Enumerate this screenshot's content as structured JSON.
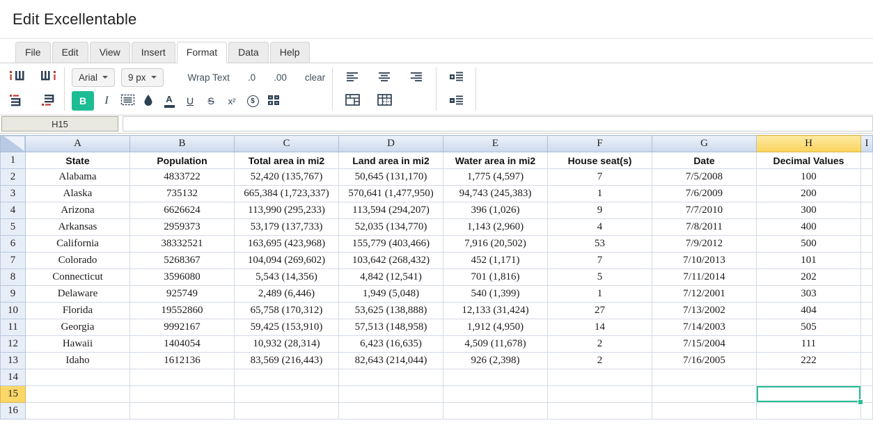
{
  "header": {
    "title": "Edit Excellentable"
  },
  "menu": {
    "items": [
      {
        "label": "File",
        "active": false
      },
      {
        "label": "Edit",
        "active": false
      },
      {
        "label": "View",
        "active": false
      },
      {
        "label": "Insert",
        "active": false
      },
      {
        "label": "Format",
        "active": true
      },
      {
        "label": "Data",
        "active": false
      },
      {
        "label": "Help",
        "active": false
      }
    ]
  },
  "toolbar": {
    "font_family": "Arial",
    "font_size": "9 px",
    "wrap_text_label": "Wrap Text",
    "decimal_decrease_label": ".0",
    "decimal_increase_label": ".00",
    "clear_label": "clear",
    "bold_label": "B",
    "italic_label": "I",
    "underline_label": "U",
    "strikethrough_label": "S",
    "superscript_label": "x²",
    "currency_label": "$",
    "text_color_label": "A",
    "icons": {
      "chevron-down": "▾",
      "insert-column-left": "svg-bars-vertical+red-accent",
      "insert-column-right": "svg-bars-vertical+red-accent",
      "insert-row-above": "svg-bars-horizontal+red-accent",
      "insert-row-below": "svg-bars-horizontal+red-accent",
      "borders": "dashed-box-with-lines",
      "fill-color": "droplet",
      "calculator": "four-blocks",
      "align-left": "lines-left",
      "align-center": "lines-center",
      "align-right": "lines-right",
      "merge-cells": "table-merged",
      "split-cells": "table-dotted",
      "indent-top": "plus-block-lines",
      "indent-bottom": "plus-block-lines"
    }
  },
  "formula_bar": {
    "cell_ref": "H15",
    "value": ""
  },
  "grid": {
    "column_headers": [
      "A",
      "B",
      "C",
      "D",
      "E",
      "F",
      "G",
      "H",
      "I"
    ],
    "selected_column": "H",
    "selected_row_number": 15,
    "selected_cell_ref": "H15",
    "rows": [
      {
        "num": 1,
        "bold": true,
        "cells": [
          "State",
          "Population",
          "Total area in mi2",
          "Land area in mi2",
          "Water area in mi2",
          "House seat(s)",
          "Date",
          "Decimal Values"
        ]
      },
      {
        "num": 2,
        "cells": [
          "Alabama",
          "4833722",
          "52,420 (135,767)",
          "50,645 (131,170)",
          "1,775 (4,597)",
          "7",
          "7/5/2008",
          "100"
        ]
      },
      {
        "num": 3,
        "cells": [
          "Alaska",
          "735132",
          "665,384 (1,723,337)",
          "570,641 (1,477,950)",
          "94,743 (245,383)",
          "1",
          "7/6/2009",
          "200"
        ]
      },
      {
        "num": 4,
        "cells": [
          "Arizona",
          "6626624",
          "113,990 (295,233)",
          "113,594 (294,207)",
          "396 (1,026)",
          "9",
          "7/7/2010",
          "300"
        ]
      },
      {
        "num": 5,
        "cells": [
          "Arkansas",
          "2959373",
          "53,179 (137,733)",
          "52,035 (134,770)",
          "1,143 (2,960)",
          "4",
          "7/8/2011",
          "400"
        ]
      },
      {
        "num": 6,
        "cells": [
          "California",
          "38332521",
          "163,695 (423,968)",
          "155,779 (403,466)",
          "7,916 (20,502)",
          "53",
          "7/9/2012",
          "500"
        ]
      },
      {
        "num": 7,
        "cells": [
          "Colorado",
          "5268367",
          "104,094 (269,602)",
          "103,642 (268,432)",
          "452 (1,171)",
          "7",
          "7/10/2013",
          "101"
        ]
      },
      {
        "num": 8,
        "cells": [
          "Connecticut",
          "3596080",
          "5,543 (14,356)",
          "4,842 (12,541)",
          "701 (1,816)",
          "5",
          "7/11/2014",
          "202"
        ]
      },
      {
        "num": 9,
        "cells": [
          "Delaware",
          "925749",
          "2,489 (6,446)",
          "1,949 (5,048)",
          "540 (1,399)",
          "1",
          "7/12/2001",
          "303"
        ]
      },
      {
        "num": 10,
        "cells": [
          "Florida",
          "19552860",
          "65,758 (170,312)",
          "53,625 (138,888)",
          "12,133 (31,424)",
          "27",
          "7/13/2002",
          "404"
        ]
      },
      {
        "num": 11,
        "cells": [
          "Georgia",
          "9992167",
          "59,425 (153,910)",
          "57,513 (148,958)",
          "1,912 (4,950)",
          "14",
          "7/14/2003",
          "505"
        ]
      },
      {
        "num": 12,
        "cells": [
          "Hawaii",
          "1404054",
          "10,932 (28,314)",
          "6,423 (16,635)",
          "4,509 (11,678)",
          "2",
          "7/15/2004",
          "111"
        ]
      },
      {
        "num": 13,
        "cells": [
          "Idaho",
          "1612136",
          "83,569 (216,443)",
          "82,643 (214,044)",
          "926 (2,398)",
          "2",
          "7/16/2005",
          "222"
        ]
      },
      {
        "num": 14,
        "cells": [
          "",
          "",
          "",
          "",
          "",
          "",
          "",
          ""
        ]
      },
      {
        "num": 15,
        "cells": [
          "",
          "",
          "",
          "",
          "",
          "",
          "",
          ""
        ]
      },
      {
        "num": 16,
        "cells": [
          "",
          "",
          "",
          "",
          "",
          "",
          "",
          ""
        ]
      }
    ]
  },
  "colors": {
    "accent_teal": "#1dbc94",
    "selection_border": "#28bd94",
    "selected_header_gold": "#fbd768",
    "header_blue_top": "#ecf2fa",
    "header_blue_bottom": "#ccd9ec",
    "icon_navy": "#2e4053",
    "icon_red": "#c0392b"
  }
}
